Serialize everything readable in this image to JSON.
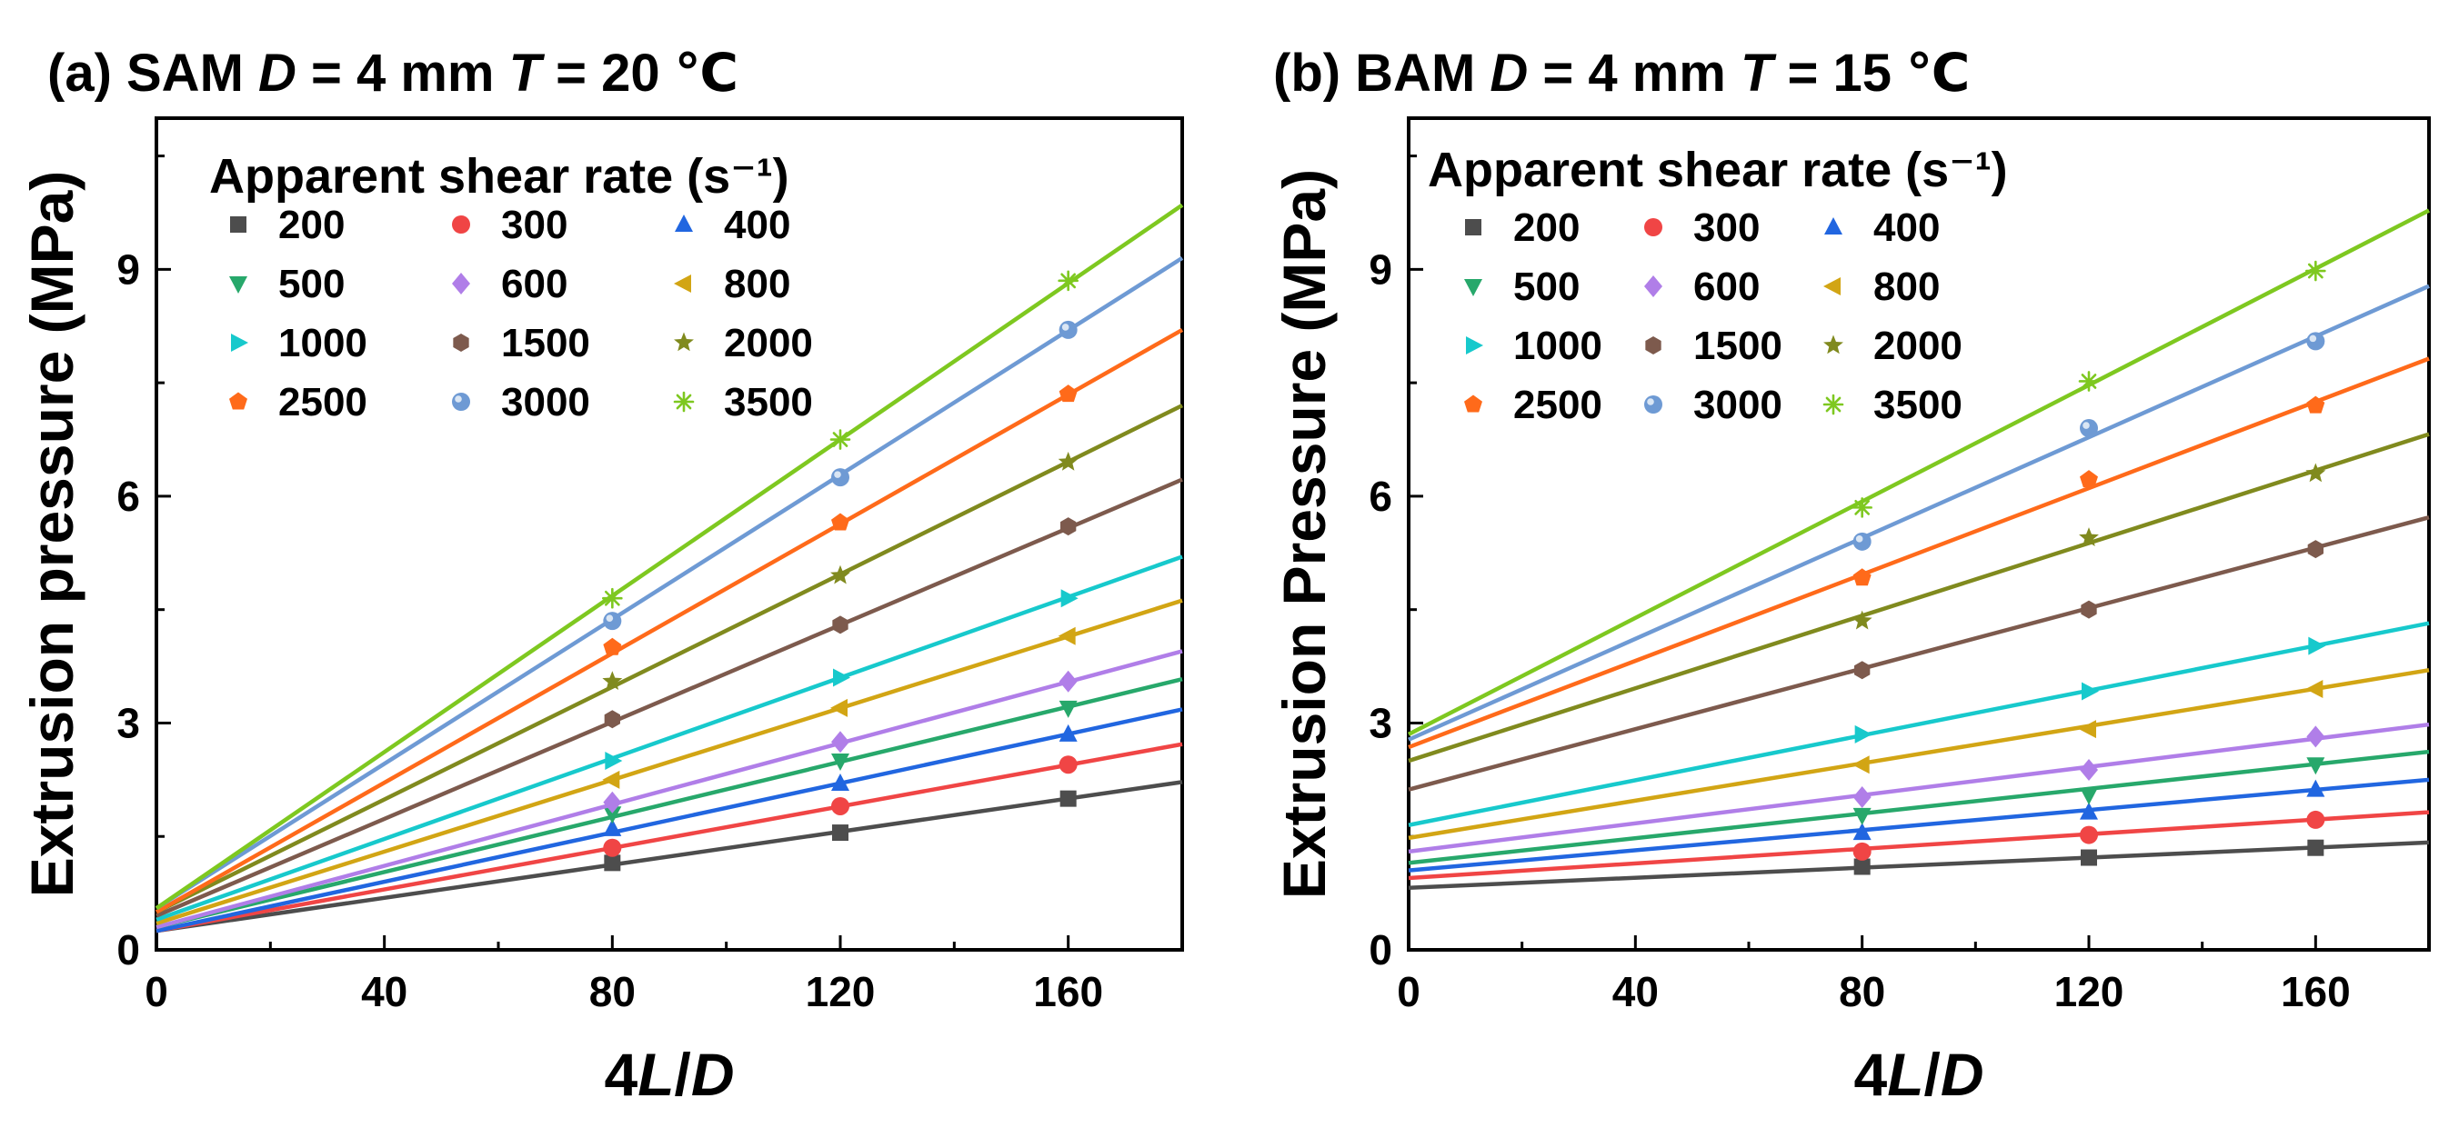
{
  "colors": [
    "#4d4d4d",
    "#f04545",
    "#2166e0",
    "#27a86b",
    "#b07ee8",
    "#d2a514",
    "#17c9cc",
    "#7d5a4d",
    "#808a1e",
    "#ff6a1a",
    "#6e9ad4",
    "#7ec820"
  ],
  "markers": [
    "square",
    "circle",
    "triangle-up",
    "triangle-down",
    "diamond",
    "triangle-left",
    "triangle-right",
    "hexagon",
    "star",
    "pentagon",
    "sphere",
    "asterisk"
  ],
  "chart_data": [
    {
      "panel": "(a)",
      "type": "line",
      "title_parts": [
        {
          "text": "(a)  SAM ",
          "italic": false
        },
        {
          "text": "D",
          "italic": true
        },
        {
          "text": " = 4 mm ",
          "italic": false
        },
        {
          "text": "T",
          "italic": true
        },
        {
          "text": " = 20 ℃",
          "italic": false
        }
      ],
      "ylabel": "Extrusion pressure (MPa)",
      "xlabel_parts": [
        {
          "text": "4",
          "italic": false
        },
        {
          "text": "L",
          "italic": true
        },
        {
          "text": "/",
          "italic": false
        },
        {
          "text": "D",
          "italic": true
        }
      ],
      "xlim": [
        0,
        180
      ],
      "ylim": [
        0,
        11
      ],
      "xticks": [
        0,
        40,
        80,
        120,
        160
      ],
      "yticks": [
        0,
        3,
        6,
        9
      ],
      "legend_title": "Apparent shear rate (s⁻¹)",
      "x": [
        80,
        120,
        160
      ],
      "series": [
        {
          "name": "200",
          "values": [
            1.15,
            1.55,
            2.0
          ],
          "fit": [
            0.25,
            2.22
          ]
        },
        {
          "name": "300",
          "values": [
            1.35,
            1.9,
            2.45
          ],
          "fit": [
            0.25,
            2.72
          ]
        },
        {
          "name": "400",
          "values": [
            1.6,
            2.2,
            2.85
          ],
          "fit": [
            0.25,
            3.18
          ]
        },
        {
          "name": "500",
          "values": [
            1.8,
            2.5,
            3.2
          ],
          "fit": [
            0.3,
            3.58
          ]
        },
        {
          "name": "600",
          "values": [
            1.95,
            2.75,
            3.55
          ],
          "fit": [
            0.3,
            3.95
          ]
        },
        {
          "name": "800",
          "values": [
            2.25,
            3.2,
            4.15
          ],
          "fit": [
            0.35,
            4.62
          ]
        },
        {
          "name": "1000",
          "values": [
            2.5,
            3.6,
            4.65
          ],
          "fit": [
            0.4,
            5.2
          ]
        },
        {
          "name": "1500",
          "values": [
            3.05,
            4.3,
            5.6
          ],
          "fit": [
            0.45,
            6.22
          ]
        },
        {
          "name": "2000",
          "values": [
            3.55,
            4.95,
            6.45
          ],
          "fit": [
            0.5,
            7.2
          ]
        },
        {
          "name": "2500",
          "values": [
            4.0,
            5.65,
            7.35
          ],
          "fit": [
            0.5,
            8.2
          ]
        },
        {
          "name": "3000",
          "values": [
            4.35,
            6.25,
            8.2
          ],
          "fit": [
            0.55,
            9.15
          ]
        },
        {
          "name": "3500",
          "values": [
            4.65,
            6.75,
            8.85
          ],
          "fit": [
            0.55,
            9.85
          ]
        }
      ]
    },
    {
      "panel": "(b)",
      "type": "line",
      "title_parts": [
        {
          "text": "(b)  BAM ",
          "italic": false
        },
        {
          "text": "D",
          "italic": true
        },
        {
          "text": " = 4 mm ",
          "italic": false
        },
        {
          "text": "T",
          "italic": true
        },
        {
          "text": " = 15 ℃",
          "italic": false
        }
      ],
      "ylabel": "Extrusion Pressure (MPa)",
      "xlabel_parts": [
        {
          "text": "4",
          "italic": false
        },
        {
          "text": "L",
          "italic": true
        },
        {
          "text": "/",
          "italic": false
        },
        {
          "text": "D",
          "italic": true
        }
      ],
      "xlim": [
        0,
        180
      ],
      "ylim": [
        0,
        11
      ],
      "xticks": [
        0,
        40,
        80,
        120,
        160
      ],
      "yticks": [
        0,
        3,
        6,
        9
      ],
      "legend_title": "Apparent shear rate (s⁻¹)",
      "x": [
        80,
        120,
        160
      ],
      "series": [
        {
          "name": "200",
          "values": [
            1.1,
            1.22,
            1.35
          ],
          "fit": [
            0.82,
            1.42
          ]
        },
        {
          "name": "300",
          "values": [
            1.3,
            1.52,
            1.72
          ],
          "fit": [
            0.95,
            1.82
          ]
        },
        {
          "name": "400",
          "values": [
            1.55,
            1.82,
            2.12
          ],
          "fit": [
            1.05,
            2.25
          ]
        },
        {
          "name": "500",
          "values": [
            1.78,
            2.05,
            2.45
          ],
          "fit": [
            1.15,
            2.62
          ]
        },
        {
          "name": "600",
          "values": [
            2.02,
            2.38,
            2.82
          ],
          "fit": [
            1.3,
            2.98
          ]
        },
        {
          "name": "800",
          "values": [
            2.45,
            2.92,
            3.45
          ],
          "fit": [
            1.48,
            3.7
          ]
        },
        {
          "name": "1000",
          "values": [
            2.85,
            3.42,
            4.02
          ],
          "fit": [
            1.65,
            4.32
          ]
        },
        {
          "name": "1500",
          "values": [
            3.7,
            4.5,
            5.3
          ],
          "fit": [
            2.12,
            5.72
          ]
        },
        {
          "name": "2000",
          "values": [
            4.35,
            5.45,
            6.3
          ],
          "fit": [
            2.5,
            6.82
          ]
        },
        {
          "name": "2500",
          "values": [
            4.92,
            6.22,
            7.2
          ],
          "fit": [
            2.68,
            7.82
          ]
        },
        {
          "name": "3000",
          "values": [
            5.4,
            6.9,
            8.05
          ],
          "fit": [
            2.78,
            8.78
          ]
        },
        {
          "name": "3500",
          "values": [
            5.85,
            7.52,
            8.98
          ],
          "fit": [
            2.85,
            9.78
          ]
        }
      ]
    }
  ]
}
